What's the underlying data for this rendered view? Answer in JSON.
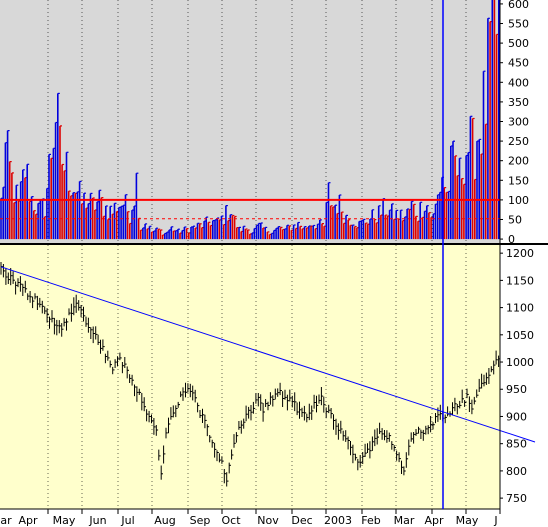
{
  "chart_data": [
    {
      "type": "bar",
      "panel": "indicator",
      "title": "",
      "xlabel": "",
      "ylabel": "",
      "ylim": [
        -10,
        610
      ],
      "y_ticks": [
        "600",
        "550",
        "500",
        "450",
        "400",
        "350",
        "300",
        "250",
        "200",
        "150",
        "100",
        "50",
        "0"
      ],
      "y_tick_values": [
        600,
        550,
        500,
        450,
        400,
        350,
        300,
        250,
        200,
        150,
        100,
        50,
        0
      ],
      "grid": "vertical dashed at month boundaries",
      "background": "#d8d8d8",
      "bar_colors": {
        "up": "#0000dd",
        "down": "#dd0000"
      },
      "reference_lines": [
        {
          "y": 100,
          "style": "solid",
          "color": "#ff0000"
        },
        {
          "y": 52,
          "style": "dashed",
          "color": "#ff0000"
        }
      ],
      "series": [
        {
          "anchors": [
            [
              0,
              100
            ],
            [
              2,
              240
            ],
            [
              5,
              160
            ],
            [
              8,
              90
            ],
            [
              11,
              195
            ],
            [
              14,
              110
            ],
            [
              17,
              80
            ],
            [
              20,
              90
            ],
            [
              23,
              250
            ],
            [
              25,
              360
            ],
            [
              27,
              240
            ],
            [
              29,
              200
            ],
            [
              31,
              180
            ],
            [
              33,
              150
            ],
            [
              35,
              130
            ],
            [
              37,
              100
            ],
            [
              39,
              110
            ],
            [
              42,
              90
            ],
            [
              45,
              105
            ],
            [
              48,
              85
            ],
            [
              51,
              75
            ],
            [
              53,
              95
            ],
            [
              56,
              100
            ],
            [
              59,
              70
            ],
            [
              62,
              160
            ],
            [
              64,
              30
            ],
            [
              66,
              45
            ],
            [
              69,
              20
            ],
            [
              72,
              25
            ],
            [
              75,
              15
            ],
            [
              78,
              30
            ],
            [
              81,
              20
            ],
            [
              84,
              25
            ],
            [
              87,
              30
            ],
            [
              90,
              35
            ],
            [
              93,
              40
            ],
            [
              96,
              50
            ],
            [
              99,
              45
            ],
            [
              102,
              60
            ],
            [
              105,
              85
            ],
            [
              107,
              50
            ],
            [
              109,
              25
            ],
            [
              112,
              30
            ],
            [
              115,
              20
            ],
            [
              118,
              35
            ],
            [
              121,
              25
            ],
            [
              124,
              20
            ],
            [
              127,
              30
            ],
            [
              130,
              25
            ],
            [
              133,
              35
            ],
            [
              136,
              40
            ],
            [
              139,
              30
            ],
            [
              142,
              45
            ],
            [
              145,
              40
            ],
            [
              148,
              35
            ],
            [
              150,
              125
            ],
            [
              152,
              90
            ],
            [
              154,
              100
            ],
            [
              156,
              85
            ],
            [
              158,
              60
            ],
            [
              161,
              55
            ],
            [
              164,
              40
            ],
            [
              167,
              50
            ],
            [
              170,
              60
            ],
            [
              173,
              70
            ],
            [
              176,
              85
            ],
            [
              179,
              70
            ],
            [
              182,
              65
            ],
            [
              185,
              60
            ],
            [
              188,
              90
            ],
            [
              191,
              70
            ],
            [
              194,
              110
            ],
            [
              196,
              75
            ],
            [
              198,
              60
            ],
            [
              200,
              115
            ],
            [
              202,
              180
            ],
            [
              204,
              120
            ],
            [
              206,
              190
            ],
            [
              208,
              210
            ],
            [
              210,
              170
            ],
            [
              212,
              240
            ],
            [
              214,
              260
            ],
            [
              216,
              240
            ],
            [
              218,
              290
            ],
            [
              220,
              320
            ],
            [
              222,
              380
            ],
            [
              224,
              510
            ],
            [
              226,
              580
            ],
            [
              228,
              580
            ]
          ],
          "notes": "daily volume-style bars, ~229 sessions from late Mar 2002 to early Jun 2003"
        }
      ]
    },
    {
      "type": "line",
      "panel": "price",
      "title": "",
      "xlabel": "",
      "ylabel": "",
      "ylim": [
        730,
        1215
      ],
      "y_ticks": [
        "1200",
        "1150",
        "1100",
        "1050",
        "1000",
        "950",
        "900",
        "850",
        "800",
        "750"
      ],
      "y_tick_values": [
        1200,
        1150,
        1100,
        1050,
        1000,
        950,
        900,
        850,
        800,
        750
      ],
      "categories": [
        "ar",
        "Apr",
        "May",
        "Jun",
        "Jul",
        "Aug",
        "Sep",
        "Oct",
        "Nov",
        "Dec",
        "2003",
        "Feb",
        "Mar",
        "Apr",
        "May",
        "J"
      ],
      "background": "#ffffcc",
      "series": [
        {
          "style": "hlc-bars",
          "color": "#000000",
          "anchors": [
            [
              0,
              1170
            ],
            [
              5,
              1150
            ],
            [
              10,
              1130
            ],
            [
              15,
              1110
            ],
            [
              20,
              1080
            ],
            [
              25,
              1060
            ],
            [
              28,
              1090
            ],
            [
              31,
              1105
            ],
            [
              34,
              1085
            ],
            [
              37,
              1060
            ],
            [
              40,
              1040
            ],
            [
              43,
              1015
            ],
            [
              46,
              990
            ],
            [
              49,
              1005
            ],
            [
              52,
              985
            ],
            [
              55,
              960
            ],
            [
              58,
              930
            ],
            [
              61,
              900
            ],
            [
              64,
              870
            ],
            [
              66,
              795
            ],
            [
              68,
              870
            ],
            [
              71,
              905
            ],
            [
              74,
              935
            ],
            [
              77,
              955
            ],
            [
              79,
              940
            ],
            [
              82,
              905
            ],
            [
              85,
              880
            ],
            [
              88,
              840
            ],
            [
              91,
              820
            ],
            [
              93,
              780
            ],
            [
              95,
              830
            ],
            [
              98,
              880
            ],
            [
              101,
              900
            ],
            [
              104,
              920
            ],
            [
              106,
              930
            ],
            [
              108,
              915
            ],
            [
              111,
              930
            ],
            [
              114,
              945
            ],
            [
              117,
              935
            ],
            [
              120,
              925
            ],
            [
              123,
              910
            ],
            [
              126,
              895
            ],
            [
              129,
              920
            ],
            [
              132,
              935
            ],
            [
              134,
              915
            ],
            [
              136,
              905
            ],
            [
              139,
              880
            ],
            [
              142,
              860
            ],
            [
              145,
              830
            ],
            [
              148,
              818
            ],
            [
              151,
              838
            ],
            [
              154,
              855
            ],
            [
              157,
              875
            ],
            [
              160,
              860
            ],
            [
              163,
              830
            ],
            [
              166,
              800
            ],
            [
              168,
              850
            ],
            [
              171,
              875
            ],
            [
              174,
              865
            ],
            [
              177,
              885
            ],
            [
              180,
              900
            ],
            [
              183,
              905
            ],
            [
              186,
              915
            ],
            [
              189,
              925
            ],
            [
              192,
              935
            ],
            [
              194,
              915
            ],
            [
              196,
              940
            ],
            [
              198,
              960
            ],
            [
              200,
              970
            ],
            [
              202,
              990
            ],
            [
              204,
              1000
            ],
            [
              205,
              1010
            ]
          ],
          "notes": "daily high-low-close bars, downtrend to Jul/Oct 2002 lows near 780 and rally to ~1000 by Jun 2003"
        }
      ],
      "trendline": {
        "from": [
          0,
          1175
        ],
        "to": [
          176,
          853
        ],
        "color": "#0000ff"
      }
    }
  ],
  "markers": {
    "vertical_cursor_color": "#0000ff"
  }
}
